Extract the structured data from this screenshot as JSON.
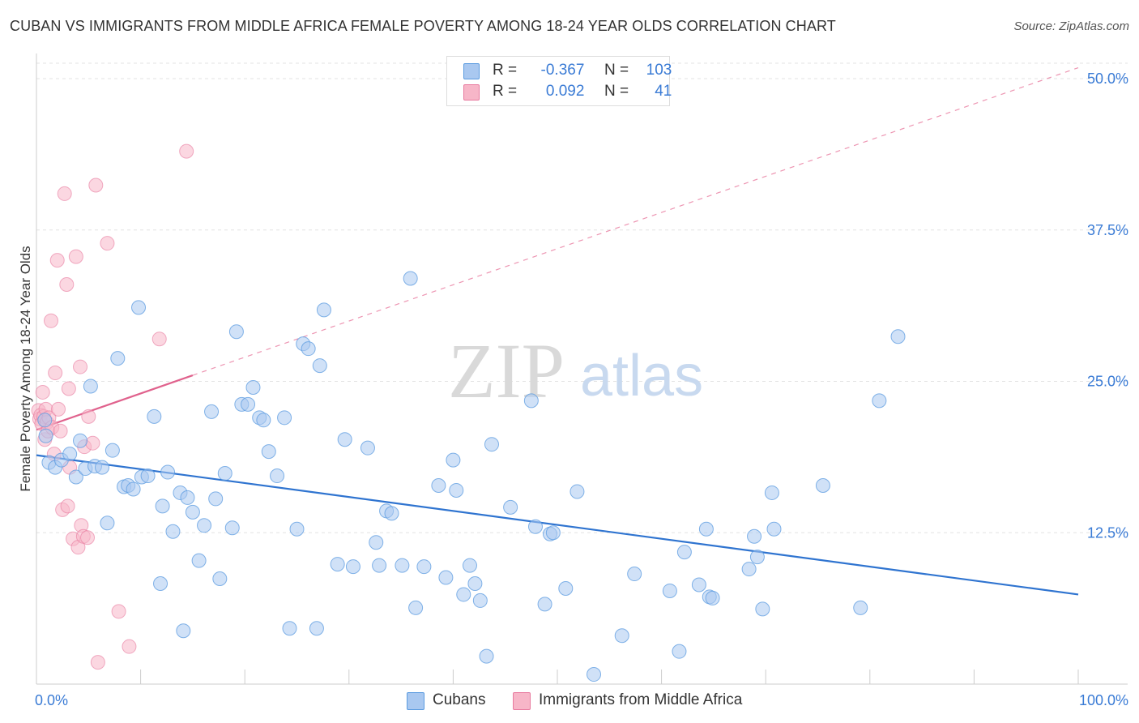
{
  "title": "CUBAN VS IMMIGRANTS FROM MIDDLE AFRICA FEMALE POVERTY AMONG 18-24 YEAR OLDS CORRELATION CHART",
  "source": "Source: ZipAtlas.com",
  "watermark": {
    "zip": "ZIP",
    "atlas": "atlas"
  },
  "legend": {
    "cubans": {
      "r_label": "R =",
      "r_value": "-0.367",
      "n_label": "N =",
      "n_value": "103",
      "color": "#a9c8f0"
    },
    "middle_africa": {
      "r_label": "R =",
      "r_value": "0.092",
      "n_label": "N =",
      "n_value": "41",
      "color": "#f7b6c8"
    }
  },
  "bottom_legend": {
    "cubans": "Cubans",
    "middle_africa": "Immigrants from Middle Africa"
  },
  "chart_data": {
    "type": "scatter",
    "title": "CUBAN VS IMMIGRANTS FROM MIDDLE AFRICA FEMALE POVERTY AMONG 18-24 YEAR OLDS CORRELATION CHART",
    "xlabel": "",
    "ylabel": "Female Poverty Among 18-24 Year Olds",
    "xlim": [
      0,
      100
    ],
    "ylim": [
      0,
      50
    ],
    "x_tick_labels": [
      "0.0%",
      "100.0%"
    ],
    "y_ticks": [
      12.5,
      25.0,
      37.5,
      50.0
    ],
    "y_tick_labels": [
      "12.5%",
      "25.0%",
      "37.5%",
      "50.0%"
    ],
    "grid": true,
    "series": [
      {
        "name": "Cubans",
        "color": "#5b9be0",
        "fill": "#a9c8f0",
        "points": [
          [
            0.8,
            21.8
          ],
          [
            0.9,
            20.5
          ],
          [
            1.2,
            18.3
          ],
          [
            1.8,
            17.9
          ],
          [
            2.4,
            18.5
          ],
          [
            3.2,
            19.0
          ],
          [
            3.8,
            17.1
          ],
          [
            4.2,
            20.1
          ],
          [
            4.7,
            17.8
          ],
          [
            5.2,
            24.6
          ],
          [
            5.6,
            18.0
          ],
          [
            6.3,
            17.9
          ],
          [
            6.8,
            13.3
          ],
          [
            7.3,
            19.3
          ],
          [
            7.8,
            26.9
          ],
          [
            8.4,
            16.3
          ],
          [
            8.8,
            16.4
          ],
          [
            9.3,
            16.1
          ],
          [
            9.8,
            31.1
          ],
          [
            10.1,
            17.1
          ],
          [
            10.7,
            17.2
          ],
          [
            11.3,
            22.1
          ],
          [
            11.9,
            8.3
          ],
          [
            12.1,
            14.7
          ],
          [
            12.6,
            17.5
          ],
          [
            13.1,
            12.6
          ],
          [
            13.8,
            15.8
          ],
          [
            14.1,
            4.4
          ],
          [
            14.5,
            15.4
          ],
          [
            15.0,
            14.2
          ],
          [
            15.6,
            10.2
          ],
          [
            16.1,
            13.1
          ],
          [
            16.8,
            22.5
          ],
          [
            17.2,
            15.3
          ],
          [
            17.6,
            8.7
          ],
          [
            18.1,
            17.4
          ],
          [
            18.8,
            12.9
          ],
          [
            19.2,
            29.1
          ],
          [
            19.7,
            23.1
          ],
          [
            20.3,
            23.1
          ],
          [
            20.8,
            24.5
          ],
          [
            21.4,
            22.0
          ],
          [
            21.8,
            21.8
          ],
          [
            22.3,
            19.2
          ],
          [
            23.1,
            17.2
          ],
          [
            23.8,
            22.0
          ],
          [
            24.3,
            4.6
          ],
          [
            25.0,
            12.8
          ],
          [
            25.6,
            28.1
          ],
          [
            26.1,
            27.7
          ],
          [
            26.9,
            4.6
          ],
          [
            27.2,
            26.3
          ],
          [
            27.6,
            30.9
          ],
          [
            28.9,
            9.9
          ],
          [
            29.6,
            20.2
          ],
          [
            30.4,
            9.7
          ],
          [
            31.8,
            19.5
          ],
          [
            32.6,
            11.7
          ],
          [
            32.9,
            9.8
          ],
          [
            33.6,
            14.3
          ],
          [
            34.1,
            14.1
          ],
          [
            35.1,
            9.8
          ],
          [
            35.9,
            33.5
          ],
          [
            36.4,
            6.3
          ],
          [
            37.2,
            9.7
          ],
          [
            38.6,
            16.4
          ],
          [
            39.3,
            8.8
          ],
          [
            40.0,
            18.5
          ],
          [
            40.3,
            16.0
          ],
          [
            41.0,
            7.4
          ],
          [
            41.6,
            9.8
          ],
          [
            42.1,
            8.3
          ],
          [
            42.6,
            6.9
          ],
          [
            43.2,
            2.3
          ],
          [
            43.7,
            19.8
          ],
          [
            45.5,
            14.6
          ],
          [
            47.5,
            23.4
          ],
          [
            47.9,
            13.0
          ],
          [
            48.8,
            6.6
          ],
          [
            49.3,
            12.4
          ],
          [
            50.8,
            7.9
          ],
          [
            51.9,
            15.9
          ],
          [
            53.5,
            0.8
          ],
          [
            56.2,
            4.0
          ],
          [
            57.4,
            9.1
          ],
          [
            60.8,
            7.7
          ],
          [
            61.7,
            2.7
          ],
          [
            62.2,
            10.9
          ],
          [
            63.6,
            8.2
          ],
          [
            64.3,
            12.8
          ],
          [
            64.6,
            7.2
          ],
          [
            68.4,
            9.5
          ],
          [
            68.9,
            12.2
          ],
          [
            69.2,
            10.5
          ],
          [
            69.7,
            6.2
          ],
          [
            70.6,
            15.8
          ],
          [
            70.8,
            12.8
          ],
          [
            75.5,
            16.4
          ],
          [
            79.1,
            6.3
          ],
          [
            80.9,
            23.4
          ],
          [
            82.7,
            28.7
          ],
          [
            64.9,
            7.1
          ],
          [
            49.6,
            12.5
          ]
        ],
        "trend": {
          "x": [
            0,
            100
          ],
          "y": [
            18.9,
            7.4
          ]
        }
      },
      {
        "name": "Immigrants from Middle Africa",
        "color": "#e87a9f",
        "fill": "#f7b6c8",
        "points": [
          [
            0.2,
            22.6
          ],
          [
            0.3,
            21.9
          ],
          [
            0.4,
            22.2
          ],
          [
            0.5,
            21.5
          ],
          [
            0.6,
            24.1
          ],
          [
            0.7,
            22.1
          ],
          [
            0.8,
            20.2
          ],
          [
            0.9,
            22.7
          ],
          [
            1.0,
            21.6
          ],
          [
            1.1,
            20.9
          ],
          [
            1.2,
            22.0
          ],
          [
            1.4,
            30.0
          ],
          [
            1.5,
            21.2
          ],
          [
            1.7,
            19.0
          ],
          [
            1.8,
            25.7
          ],
          [
            2.0,
            35.0
          ],
          [
            2.1,
            22.7
          ],
          [
            2.3,
            20.9
          ],
          [
            2.5,
            14.4
          ],
          [
            2.7,
            40.5
          ],
          [
            2.9,
            33.0
          ],
          [
            3.0,
            14.7
          ],
          [
            3.1,
            24.4
          ],
          [
            3.2,
            17.9
          ],
          [
            3.5,
            12.0
          ],
          [
            3.8,
            35.3
          ],
          [
            4.0,
            11.3
          ],
          [
            4.2,
            26.2
          ],
          [
            4.3,
            13.1
          ],
          [
            4.5,
            12.2
          ],
          [
            4.6,
            19.6
          ],
          [
            4.9,
            12.1
          ],
          [
            5.0,
            22.1
          ],
          [
            5.7,
            41.2
          ],
          [
            5.9,
            1.8
          ],
          [
            6.8,
            36.4
          ],
          [
            7.9,
            6.0
          ],
          [
            8.9,
            3.1
          ],
          [
            11.8,
            28.5
          ],
          [
            14.4,
            44.0
          ],
          [
            5.4,
            19.9
          ]
        ],
        "trend_solid": {
          "x": [
            0,
            15
          ],
          "y": [
            21.0,
            25.5
          ]
        },
        "trend_dashed": {
          "x": [
            15,
            100
          ],
          "y": [
            25.5,
            50.9
          ]
        }
      }
    ]
  }
}
